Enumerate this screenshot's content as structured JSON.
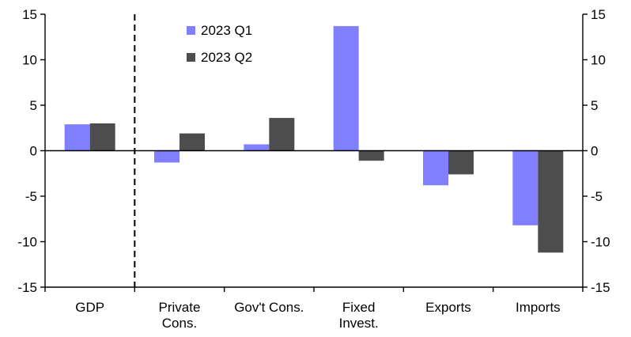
{
  "chart_data": {
    "type": "bar",
    "title": "",
    "xlabel": "",
    "ylabel": "",
    "categories": [
      [
        "GDP"
      ],
      [
        "Private",
        "Cons."
      ],
      [
        "Gov't Cons."
      ],
      [
        "Fixed",
        "Invest."
      ],
      [
        "Exports"
      ],
      [
        "Imports"
      ]
    ],
    "series": [
      {
        "name": "2023 Q1",
        "color": "#8080FF",
        "values": [
          2.9,
          -1.3,
          0.7,
          13.7,
          -3.8,
          -8.2
        ]
      },
      {
        "name": "2023 Q2",
        "color": "#4D4D4D",
        "values": [
          3.0,
          1.9,
          3.6,
          -1.1,
          -2.6,
          -11.2
        ]
      }
    ],
    "ylim": [
      -15,
      15
    ],
    "yticks": [
      15,
      10,
      5,
      0,
      -5,
      -10,
      -15
    ],
    "left_tick_labels": [
      "15",
      "10",
      "5",
      "0",
      "-5",
      "-10",
      "-15"
    ],
    "right_tick_labels": [
      "15",
      "10",
      "5",
      "0",
      "-5",
      "-10",
      "-15"
    ],
    "legend_position": "top-center",
    "divider_after_category": "GDP",
    "grid": false
  }
}
